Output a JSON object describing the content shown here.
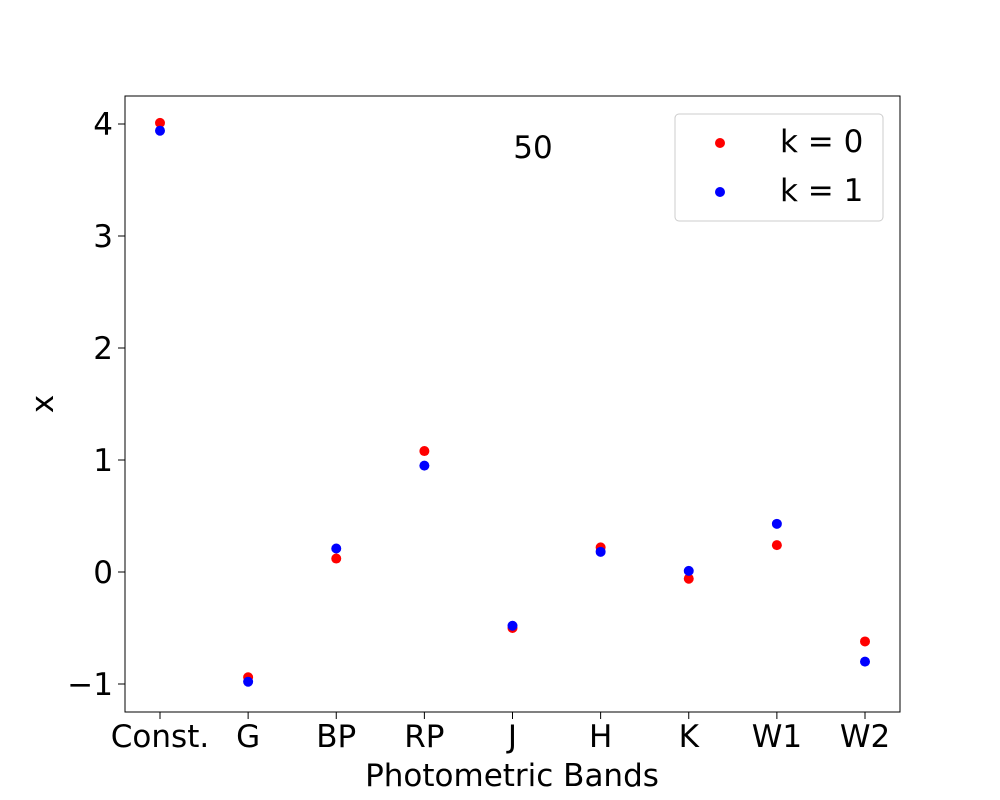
{
  "chart_data": {
    "type": "scatter",
    "title": "",
    "xlabel": "Photometric Bands",
    "ylabel": "x",
    "categories": [
      "Const.",
      "G",
      "BP",
      "RP",
      "J",
      "H",
      "K",
      "W1",
      "W2"
    ],
    "ylim": [
      -1.25,
      4.25
    ],
    "yticks": [
      -1,
      0,
      1,
      2,
      3,
      4
    ],
    "ytick_labels": [
      "−1",
      "0",
      "1",
      "2",
      "3",
      "4"
    ],
    "grid": false,
    "legend_position": "top-right",
    "annotation": "50",
    "series": [
      {
        "name": "k = 0",
        "color": "#ff0000",
        "values": [
          4.01,
          -0.94,
          0.12,
          1.08,
          -0.5,
          0.22,
          -0.06,
          0.24,
          -0.62
        ]
      },
      {
        "name": "k = 1",
        "color": "#0000ff",
        "values": [
          3.94,
          -0.98,
          0.21,
          0.95,
          -0.48,
          0.18,
          0.01,
          0.43,
          -0.8
        ]
      }
    ]
  }
}
